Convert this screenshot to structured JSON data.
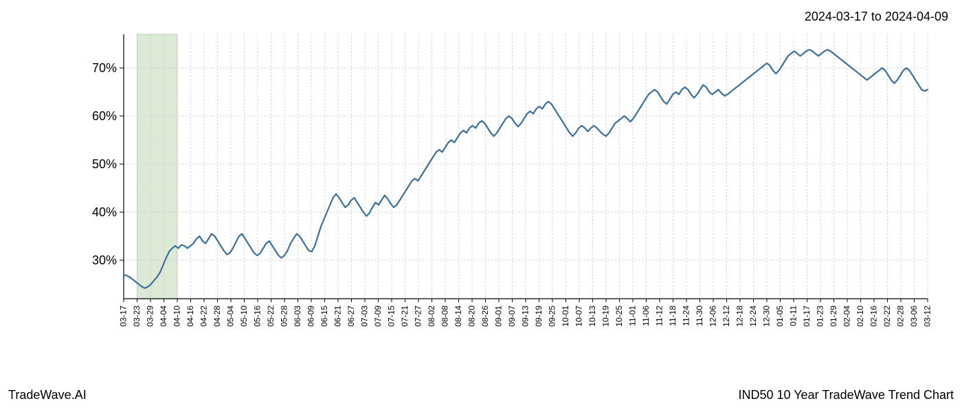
{
  "header": {
    "date_range": "2024-03-17 to 2024-04-09"
  },
  "footer": {
    "left": "TradeWave.AI",
    "right": "IND50 10 Year TradeWave Trend Chart"
  },
  "chart": {
    "type": "line",
    "background_color": "#ffffff",
    "grid_color": "#cccccc",
    "grid_dash": "2,3",
    "axis_color": "#000000",
    "line_color": "#3b6fa0",
    "line_width": 2.2,
    "highlight_band": {
      "fill": "#dce9d5",
      "stroke": "#b8d0aa",
      "x_start_label": "03-23",
      "x_end_label": "04-10"
    },
    "y_axis": {
      "min": 22,
      "max": 77,
      "ticks": [
        30,
        40,
        50,
        60,
        70
      ],
      "tick_format_suffix": "%",
      "label_fontsize": 18
    },
    "x_axis": {
      "labels": [
        "03-17",
        "03-23",
        "03-29",
        "04-04",
        "04-10",
        "04-16",
        "04-22",
        "04-28",
        "05-04",
        "05-10",
        "05-16",
        "05-22",
        "05-28",
        "06-03",
        "06-09",
        "06-15",
        "06-21",
        "06-27",
        "07-03",
        "07-09",
        "07-15",
        "07-21",
        "07-27",
        "08-02",
        "08-08",
        "08-14",
        "08-20",
        "08-26",
        "09-01",
        "09-07",
        "09-13",
        "09-19",
        "09-25",
        "10-01",
        "10-07",
        "10-13",
        "10-19",
        "10-25",
        "11-01",
        "11-06",
        "11-12",
        "11-18",
        "11-24",
        "11-30",
        "12-06",
        "12-12",
        "12-18",
        "12-24",
        "12-30",
        "01-05",
        "01-11",
        "01-17",
        "01-23",
        "01-29",
        "02-04",
        "02-10",
        "02-16",
        "02-22",
        "02-28",
        "03-06",
        "03-12"
      ],
      "label_fontsize": 12,
      "label_rotation": -90
    },
    "series": {
      "name": "IND50",
      "values": [
        27.0,
        26.8,
        26.5,
        26.0,
        25.5,
        25.0,
        24.5,
        24.2,
        24.5,
        25.0,
        25.8,
        26.5,
        27.5,
        29.0,
        30.5,
        31.8,
        32.5,
        33.0,
        32.5,
        33.2,
        33.0,
        32.5,
        33.0,
        33.5,
        34.5,
        35.0,
        34.0,
        33.5,
        34.5,
        35.5,
        35.0,
        34.0,
        33.0,
        32.0,
        31.2,
        31.5,
        32.5,
        33.8,
        35.0,
        35.5,
        34.5,
        33.5,
        32.5,
        31.5,
        31.0,
        31.5,
        32.5,
        33.5,
        34.0,
        33.0,
        32.0,
        31.0,
        30.5,
        31.0,
        32.0,
        33.5,
        34.5,
        35.5,
        35.0,
        34.0,
        33.0,
        32.0,
        31.8,
        33.0,
        35.0,
        37.0,
        38.5,
        40.0,
        41.5,
        43.0,
        43.8,
        43.0,
        42.0,
        41.0,
        41.5,
        42.5,
        43.0,
        42.0,
        41.0,
        40.0,
        39.2,
        39.8,
        41.0,
        42.0,
        41.5,
        42.5,
        43.5,
        42.8,
        41.8,
        41.0,
        41.5,
        42.5,
        43.5,
        44.5,
        45.5,
        46.5,
        47.0,
        46.5,
        47.5,
        48.5,
        49.5,
        50.5,
        51.5,
        52.5,
        53.0,
        52.5,
        53.5,
        54.5,
        55.0,
        54.5,
        55.5,
        56.5,
        57.0,
        56.5,
        57.5,
        58.0,
        57.5,
        58.5,
        59.0,
        58.5,
        57.5,
        56.5,
        55.8,
        56.5,
        57.5,
        58.5,
        59.5,
        60.0,
        59.5,
        58.5,
        57.8,
        58.5,
        59.5,
        60.5,
        61.0,
        60.5,
        61.5,
        62.0,
        61.5,
        62.5,
        63.0,
        62.5,
        61.5,
        60.5,
        59.5,
        58.5,
        57.5,
        56.5,
        55.8,
        56.5,
        57.5,
        58.0,
        57.5,
        56.8,
        57.5,
        58.0,
        57.5,
        56.8,
        56.2,
        55.8,
        56.5,
        57.5,
        58.5,
        59.0,
        59.5,
        60.0,
        59.5,
        58.8,
        59.5,
        60.5,
        61.5,
        62.5,
        63.5,
        64.5,
        65.0,
        65.5,
        65.0,
        64.0,
        63.0,
        62.5,
        63.5,
        64.5,
        65.0,
        64.5,
        65.5,
        66.0,
        65.5,
        64.5,
        63.8,
        64.5,
        65.5,
        66.5,
        66.0,
        65.0,
        64.5,
        65.0,
        65.5,
        64.8,
        64.2,
        64.5,
        65.0,
        65.5,
        66.0,
        66.5,
        67.0,
        67.5,
        68.0,
        68.5,
        69.0,
        69.5,
        70.0,
        70.5,
        71.0,
        70.5,
        69.5,
        68.8,
        69.5,
        70.5,
        71.5,
        72.5,
        73.0,
        73.5,
        73.0,
        72.5,
        73.0,
        73.5,
        73.8,
        73.5,
        73.0,
        72.5,
        73.0,
        73.5,
        73.8,
        73.5,
        73.0,
        72.5,
        72.0,
        71.5,
        71.0,
        70.5,
        70.0,
        69.5,
        69.0,
        68.5,
        68.0,
        67.5,
        68.0,
        68.5,
        69.0,
        69.5,
        70.0,
        69.5,
        68.5,
        67.5,
        66.8,
        67.5,
        68.5,
        69.5,
        70.0,
        69.5,
        68.5,
        67.5,
        66.5,
        65.5,
        65.2,
        65.5
      ]
    }
  }
}
